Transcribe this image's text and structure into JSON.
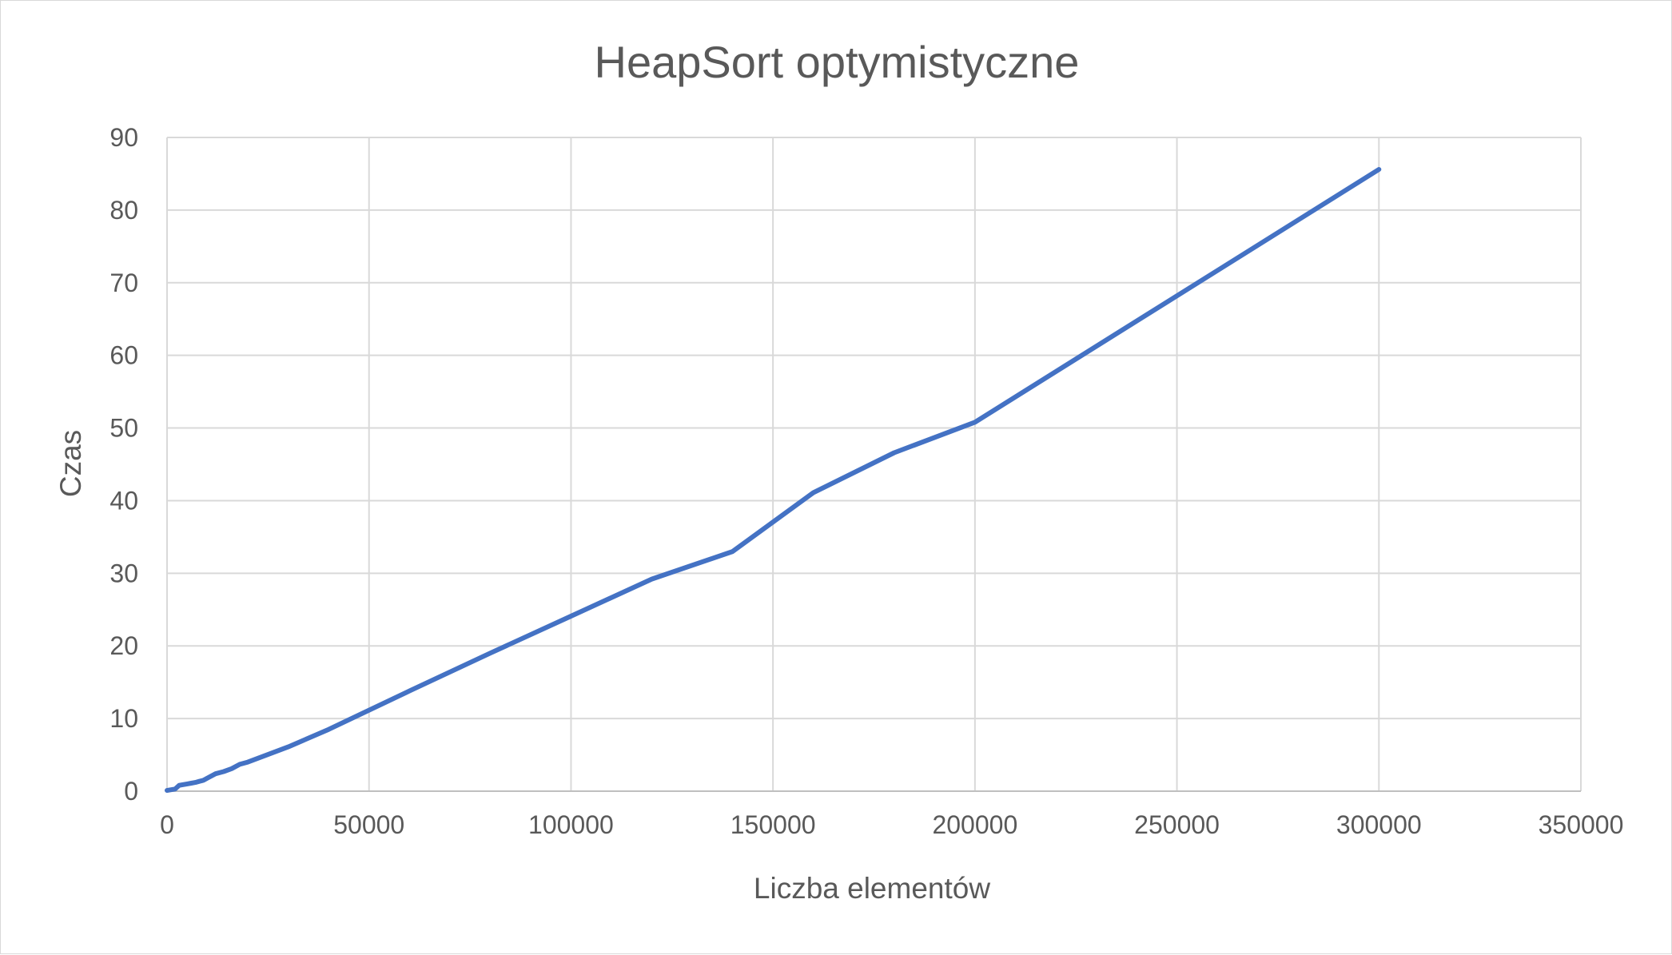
{
  "chart_data": {
    "type": "line",
    "title": "HeapSort optymistyczne",
    "xlabel": "Liczba elementów",
    "ylabel": "Czas",
    "xlim": [
      0,
      350000
    ],
    "ylim": [
      0,
      90
    ],
    "xticks": [
      0,
      50000,
      100000,
      150000,
      200000,
      250000,
      300000,
      350000
    ],
    "yticks": [
      0,
      10,
      20,
      30,
      40,
      50,
      60,
      70,
      80,
      90
    ],
    "grid": true,
    "legend": "none",
    "series": [
      {
        "color": "#4472c4",
        "x": [
          0,
          1000,
          2000,
          3000,
          4000,
          5000,
          6000,
          7000,
          8000,
          9000,
          10000,
          12000,
          14000,
          16000,
          18000,
          20000,
          30000,
          40000,
          60000,
          80000,
          100000,
          120000,
          140000,
          160000,
          180000,
          200000,
          300000
        ],
        "y": [
          0.1,
          0.2,
          0.3,
          0.8,
          0.9,
          1.0,
          1.1,
          1.2,
          1.35,
          1.5,
          1.8,
          2.4,
          2.7,
          3.1,
          3.7,
          4.0,
          6.1,
          8.5,
          13.8,
          19.0,
          24.1,
          29.2,
          33.0,
          41.1,
          46.6,
          50.8,
          85.6
        ]
      }
    ]
  }
}
